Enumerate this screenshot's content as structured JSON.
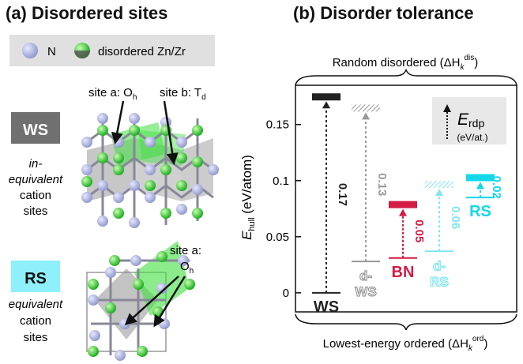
{
  "panel_a": {
    "title": "(a) Disordered sites",
    "legend": {
      "n_label": "N",
      "zn_label": "disordered Zn/Zr"
    },
    "ws": {
      "badge": "WS",
      "desc_line1": "in-",
      "desc_line2": "equivalent",
      "desc_line3": "cation",
      "desc_line4": "sites",
      "site_a_label": "site a: O",
      "site_a_sub": "h",
      "site_b_label": "site b: T",
      "site_b_sub": "d"
    },
    "rs": {
      "badge": "RS",
      "desc_line1": "equivalent",
      "desc_line2": "cation",
      "desc_line3": "sites",
      "site_a_label_1": "site a:",
      "site_a_label_2": "O",
      "site_a_sub": "h"
    }
  },
  "panel_b": {
    "title": "(b) Disorder tolerance",
    "top_brace_label": "Random disordered (ΔH",
    "top_brace_sub": "k",
    "top_brace_sup": "dis",
    "bottom_brace_label": "Lowest-energy ordered (ΔH",
    "bottom_brace_sub": "k",
    "bottom_brace_sup": "ord",
    "legend_symbol": "E",
    "legend_sub": "rdp",
    "legend_unit": "(eV/at.)",
    "ylabel_main": "E",
    "ylabel_sub": "hull",
    "ylabel_unit": " (eV/atom)"
  },
  "chart_data": {
    "type": "bar",
    "ylabel": "E_hull (eV/atom)",
    "ylim": [
      -0.017,
      0.185
    ],
    "yticks": [
      0,
      0.05,
      0.1,
      0.15
    ],
    "ytick_labels": [
      "0",
      "0.05",
      "0.1",
      "0.15"
    ],
    "grid": false,
    "series": [
      {
        "category": "WS",
        "cat_lines": [
          "WS"
        ],
        "ordered": 0.0,
        "disordered": 0.175,
        "rdp_label": "0.17",
        "color": "#222222",
        "style": "solid"
      },
      {
        "category": "d-WS",
        "cat_lines": [
          "d-",
          "WS"
        ],
        "ordered": 0.028,
        "disordered": 0.165,
        "rdp_label": "0.13",
        "color": "#999999",
        "style": "hatched"
      },
      {
        "category": "BN",
        "cat_lines": [
          "BN"
        ],
        "ordered": 0.031,
        "disordered": 0.079,
        "rdp_label": "0.05",
        "color": "#d21c44",
        "style": "solid"
      },
      {
        "category": "d-RS",
        "cat_lines": [
          "d-",
          "RS"
        ],
        "ordered": 0.037,
        "disordered": 0.097,
        "rdp_label": "0.06",
        "color": "#7fe6ef",
        "style": "hatched"
      },
      {
        "category": "RS",
        "cat_lines": [
          "RS"
        ],
        "ordered": 0.085,
        "disordered": 0.103,
        "rdp_label": "0.02",
        "color": "#12d8ea",
        "style": "solid"
      }
    ]
  }
}
